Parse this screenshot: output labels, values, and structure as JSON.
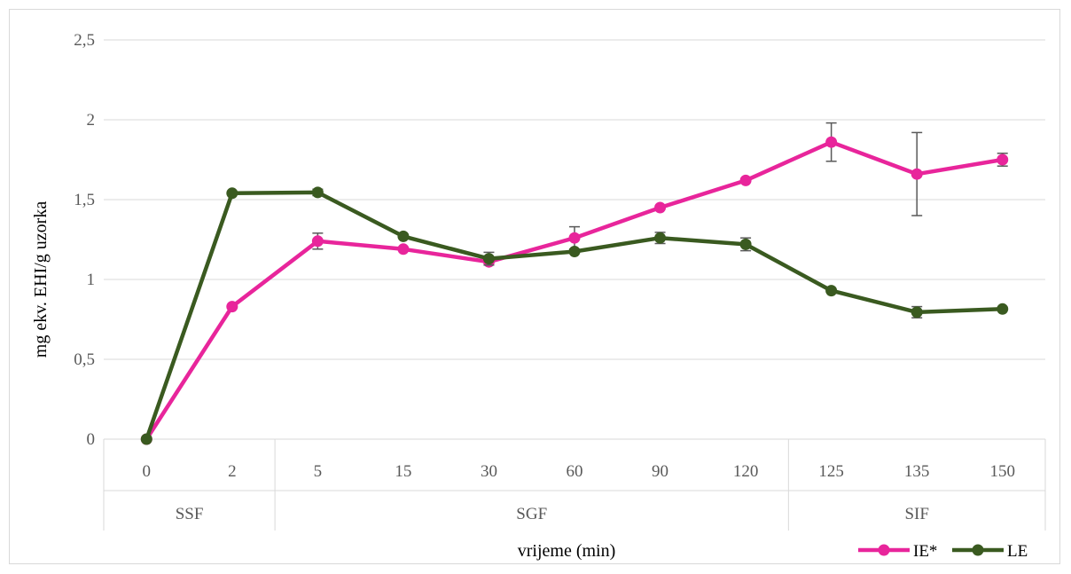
{
  "chart_data": {
    "type": "line",
    "xlabel": "vrijeme (min)",
    "ylabel": "mg ekv. EHI/g uzorka",
    "ylim": [
      0,
      2.5
    ],
    "yticks": [
      "0",
      "0,5",
      "1",
      "1,5",
      "2",
      "2,5"
    ],
    "ytick_values": [
      0,
      0.5,
      1,
      1.5,
      2,
      2.5
    ],
    "categories": [
      "0",
      "2",
      "5",
      "15",
      "30",
      "60",
      "90",
      "120",
      "125",
      "135",
      "150"
    ],
    "groups": [
      {
        "label": "SSF",
        "count": 2
      },
      {
        "label": "SGF",
        "count": 6
      },
      {
        "label": "SIF",
        "count": 3
      }
    ],
    "grid": true,
    "legend_position": "bottom-right",
    "series": [
      {
        "name": "IE*",
        "color": "#e8259b",
        "values": [
          0,
          0.83,
          1.24,
          1.19,
          1.11,
          1.26,
          1.45,
          1.62,
          1.86,
          1.66,
          1.75
        ],
        "errors": [
          0,
          0,
          0.05,
          0,
          0,
          0.07,
          0,
          0,
          0.12,
          0.26,
          0.04
        ]
      },
      {
        "name": "LE",
        "color": "#3a5a20",
        "values": [
          0,
          1.54,
          1.545,
          1.27,
          1.13,
          1.175,
          1.26,
          1.22,
          0.93,
          0.795,
          0.815
        ],
        "errors": [
          0,
          0,
          0.02,
          0,
          0.04,
          0,
          0.035,
          0.04,
          0,
          0.035,
          0
        ]
      }
    ]
  }
}
